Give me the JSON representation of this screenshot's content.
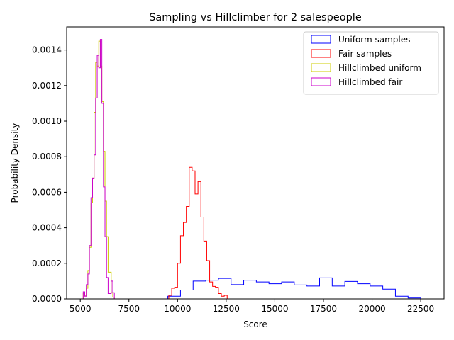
{
  "chart_data": {
    "type": "histogram",
    "title": "Sampling vs Hillclimber for 2 salespeople",
    "xlabel": "Score",
    "ylabel": "Probability Density",
    "xlim": [
      4300,
      23700
    ],
    "ylim": [
      0,
      0.00153
    ],
    "xticks": [
      {
        "value": 5000,
        "label": "5000"
      },
      {
        "value": 7500,
        "label": "7500"
      },
      {
        "value": 10000,
        "label": "10000"
      },
      {
        "value": 12500,
        "label": "12500"
      },
      {
        "value": 15000,
        "label": "15000"
      },
      {
        "value": 17500,
        "label": "17500"
      },
      {
        "value": 20000,
        "label": "20000"
      },
      {
        "value": 22500,
        "label": "22500"
      }
    ],
    "yticks": [
      {
        "value": 0,
        "label": "0.0000"
      },
      {
        "value": 0.0002,
        "label": "0.0002"
      },
      {
        "value": 0.0004,
        "label": "0.0004"
      },
      {
        "value": 0.0006,
        "label": "0.0006"
      },
      {
        "value": 0.0008,
        "label": "0.0008"
      },
      {
        "value": 0.001,
        "label": "0.0010"
      },
      {
        "value": 0.0012,
        "label": "0.0012"
      },
      {
        "value": 0.0014,
        "label": "0.0014"
      }
    ],
    "grid": false,
    "legend_position": "top-right",
    "series": [
      {
        "name": "Uniform samples",
        "color": "#0000ff",
        "edges": [
          9500,
          10150,
          10800,
          11450,
          12100,
          12750,
          13400,
          14050,
          14700,
          15350,
          16000,
          16650,
          17300,
          17950,
          18600,
          19250,
          19900,
          20550,
          21200,
          21850,
          22500
        ],
        "values": [
          1.5e-05,
          5e-05,
          0.0001,
          0.000105,
          0.000115,
          8e-05,
          0.000105,
          9.5e-05,
          8.5e-05,
          9.5e-05,
          7.8e-05,
          7.2e-05,
          0.000118,
          7.2e-05,
          9.8e-05,
          8.5e-05,
          7.2e-05,
          5.5e-05,
          1.5e-05,
          5e-06
        ]
      },
      {
        "name": "Fair samples",
        "color": "#ff0000",
        "edges": [
          9550,
          9700,
          9850,
          10000,
          10150,
          10300,
          10450,
          10600,
          10750,
          10900,
          11050,
          11200,
          11350,
          11500,
          11650,
          11800,
          11950,
          12100,
          12250,
          12400,
          12550,
          12700,
          12850,
          13000
        ],
        "values": [
          2e-05,
          6e-05,
          6.5e-05,
          0.0002,
          0.000355,
          0.00043,
          0.00052,
          0.00074,
          0.00072,
          0.00059,
          0.00066,
          0.00046,
          0.000325,
          0.000215,
          9.5e-05,
          7e-05,
          6.5e-05,
          3e-05,
          1.5e-05,
          2e-05,
          0,
          0,
          0
        ]
      },
      {
        "name": "Hillclimbed uniform",
        "color": "#cccc00",
        "edges": [
          5150,
          5230,
          5310,
          5390,
          5470,
          5550,
          5630,
          5710,
          5790,
          5870,
          5950,
          6030,
          6110,
          6190,
          6270,
          6350,
          6430,
          6510,
          6590,
          6670,
          6750,
          6830,
          6910
        ],
        "values": [
          3e-05,
          2e-05,
          6e-05,
          0.00016,
          0.00029,
          0.00054,
          0.00068,
          0.00105,
          0.00133,
          0.00131,
          0.00145,
          0.00131,
          0.00111,
          0.00083,
          0.00055,
          0.00035,
          0.00015,
          0.00015,
          3.5e-05,
          1e-05,
          0,
          0
        ]
      },
      {
        "name": "Hillclimbed fair",
        "color": "#cc00cc",
        "edges": [
          5150,
          5230,
          5310,
          5390,
          5470,
          5550,
          5630,
          5710,
          5790,
          5870,
          5950,
          6030,
          6110,
          6190,
          6270,
          6350,
          6430,
          6510,
          6590,
          6670,
          6750,
          6830,
          6910
        ],
        "values": [
          4e-05,
          1.5e-05,
          8e-05,
          0.00014,
          0.0003,
          0.00057,
          0.00068,
          0.00081,
          0.00113,
          0.00137,
          0.0013,
          0.00146,
          0.0011,
          0.00063,
          0.00035,
          0.00012,
          3e-05,
          3e-05,
          0.0001,
          3.5e-05,
          0,
          0
        ]
      }
    ]
  }
}
